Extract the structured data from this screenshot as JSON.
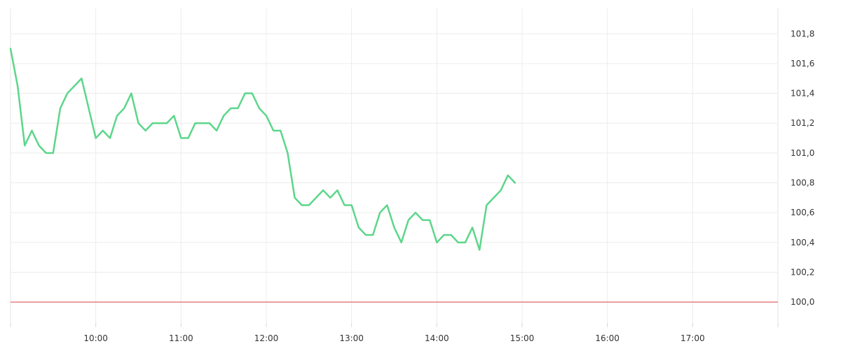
{
  "chart_data": {
    "type": "line",
    "title": "",
    "xlabel": "",
    "ylabel": "",
    "x_range": [
      "09:00",
      "18:00"
    ],
    "ylim": [
      99.86,
      101.97
    ],
    "x_ticks": [
      "10:00",
      "11:00",
      "12:00",
      "13:00",
      "14:00",
      "15:00",
      "16:00",
      "17:00"
    ],
    "y_ticks": [
      "100,0",
      "100,2",
      "100,4",
      "100,6",
      "100,8",
      "101,0",
      "101,2",
      "101,4",
      "101,6",
      "101,8"
    ],
    "y_tick_values": [
      100.0,
      100.2,
      100.4,
      100.6,
      100.8,
      101.0,
      101.2,
      101.4,
      101.6,
      101.8
    ],
    "grid": true,
    "line_color": "#5cd68a",
    "reference_line": {
      "value": 100.0,
      "color": "#e06666"
    },
    "series": [
      {
        "x": [
          "09:00",
          "09:05",
          "09:10",
          "09:15",
          "09:20",
          "09:25",
          "09:30",
          "09:35",
          "09:40",
          "09:45",
          "09:50",
          "09:55",
          "10:00",
          "10:05",
          "10:10",
          "10:15",
          "10:20",
          "10:25",
          "10:30",
          "10:35",
          "10:40",
          "10:45",
          "10:50",
          "10:55",
          "11:00",
          "11:05",
          "11:10",
          "11:15",
          "11:20",
          "11:25",
          "11:30",
          "11:35",
          "11:40",
          "11:45",
          "11:50",
          "11:55",
          "12:00",
          "12:05",
          "12:10",
          "12:15",
          "12:20",
          "12:25",
          "12:30",
          "12:35",
          "12:40",
          "12:45",
          "12:50",
          "12:55",
          "13:00",
          "13:05",
          "13:10",
          "13:15",
          "13:20",
          "13:25",
          "13:30",
          "13:35",
          "13:40",
          "13:45",
          "13:50",
          "13:55",
          "14:00",
          "14:05",
          "14:10",
          "14:15",
          "14:20",
          "14:25",
          "14:30",
          "14:35",
          "14:40",
          "14:45",
          "14:50",
          "14:55"
        ],
        "values": [
          101.7,
          101.45,
          101.05,
          101.15,
          101.05,
          101.0,
          101.0,
          101.3,
          101.4,
          101.45,
          101.5,
          101.3,
          101.1,
          101.15,
          101.1,
          101.25,
          101.3,
          101.4,
          101.2,
          101.15,
          101.2,
          101.2,
          101.2,
          101.25,
          101.1,
          101.1,
          101.2,
          101.2,
          101.2,
          101.15,
          101.25,
          101.3,
          101.3,
          101.4,
          101.4,
          101.3,
          101.25,
          101.15,
          101.15,
          101.0,
          100.7,
          100.65,
          100.65,
          100.7,
          100.75,
          100.7,
          100.75,
          100.65,
          100.65,
          100.5,
          100.45,
          100.45,
          100.6,
          100.65,
          100.5,
          100.4,
          100.55,
          100.6,
          100.55,
          100.55,
          100.4,
          100.45,
          100.45,
          100.4,
          100.4,
          100.5,
          100.35,
          100.65,
          100.7,
          100.75,
          100.85,
          100.8
        ]
      }
    ]
  }
}
